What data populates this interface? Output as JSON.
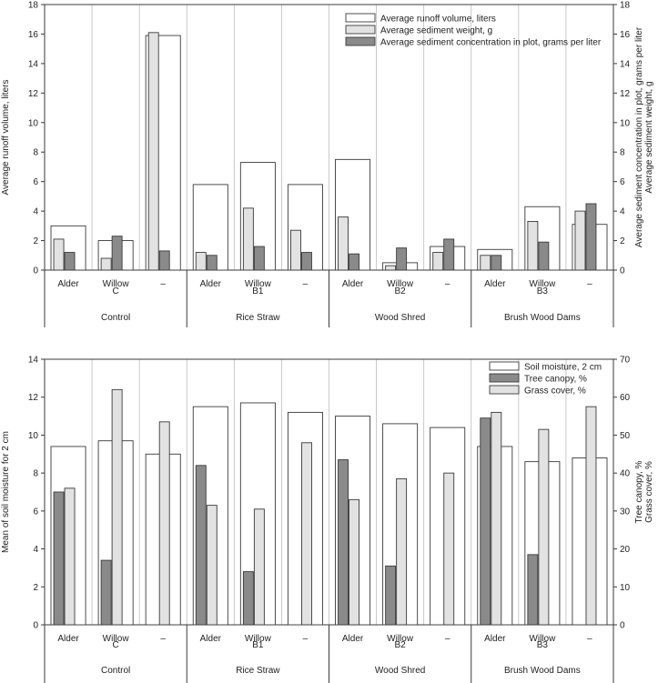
{
  "figure": {
    "colors": {
      "outline": "#3a3a3a",
      "light_fill": "#e2e2e2",
      "dark_fill": "#8a8a8a",
      "white_fill": "#ffffff"
    },
    "treatments": [
      {
        "code": "C",
        "name": "Control"
      },
      {
        "code": "B1",
        "name": "Rice Straw"
      },
      {
        "code": "B2",
        "name": "Wood Shred"
      },
      {
        "code": "B3",
        "name": "Brush Wood Dams"
      }
    ],
    "species": [
      "Alder",
      "Willow",
      "–"
    ]
  },
  "chart_data": [
    {
      "type": "bar",
      "ylabel": "Average runoff volume, liters",
      "y2label": [
        "Average sediment concentration in plot, grams per liter",
        "Average sediment weight, g"
      ],
      "ylim": [
        0,
        18
      ],
      "y2lim": [
        0,
        18
      ],
      "yticks": [
        0,
        2,
        4,
        6,
        8,
        10,
        12,
        14,
        16,
        18
      ],
      "y2ticks": [
        0,
        2,
        4,
        6,
        8,
        10,
        12,
        14,
        16,
        18
      ],
      "legend_position": "top-right",
      "grid": "vertical",
      "categories": [
        "Alder",
        "Willow",
        "–",
        "Alder",
        "Willow",
        "–",
        "Alder",
        "Willow",
        "–",
        "Alder",
        "Willow",
        "–"
      ],
      "series": [
        {
          "name": "Average runoff volume, liters",
          "style": "white",
          "axis": "left",
          "values": [
            3.0,
            2.0,
            15.9,
            5.8,
            7.3,
            5.8,
            7.5,
            0.5,
            1.6,
            1.4,
            4.3,
            3.1
          ]
        },
        {
          "name": "Average sediment weight, g",
          "style": "light",
          "axis": "right",
          "values": [
            2.1,
            0.8,
            16.1,
            1.2,
            4.2,
            2.7,
            3.6,
            0.3,
            1.2,
            1.0,
            3.3,
            4.0
          ]
        },
        {
          "name": "Average sediment concentration in plot, grams per liter",
          "style": "dark",
          "axis": "right",
          "values": [
            1.2,
            2.3,
            1.3,
            1.0,
            1.6,
            1.2,
            1.1,
            1.5,
            2.1,
            1.0,
            1.9,
            4.5
          ]
        }
      ]
    },
    {
      "type": "bar",
      "ylabel": "Mean of soil moisture for 2 cm",
      "y2label": [
        "Tree canopy, %",
        "Grass cover, %"
      ],
      "ylim": [
        0,
        14
      ],
      "y2lim": [
        0,
        70
      ],
      "yticks": [
        0,
        2,
        4,
        6,
        8,
        10,
        12,
        14
      ],
      "y2ticks": [
        0,
        10,
        20,
        30,
        40,
        50,
        60,
        70
      ],
      "legend_position": "top-right",
      "grid": "vertical",
      "categories": [
        "Alder",
        "Willow",
        "–",
        "Alder",
        "Willow",
        "–",
        "Alder",
        "Willow",
        "–",
        "Alder",
        "Willow",
        "–"
      ],
      "series": [
        {
          "name": "Soil moisture, 2 cm",
          "style": "white",
          "axis": "left",
          "values": [
            9.4,
            9.7,
            9.0,
            11.5,
            11.7,
            11.2,
            11.0,
            10.6,
            10.4,
            9.4,
            8.6,
            8.8
          ]
        },
        {
          "name": "Tree canopy, %",
          "style": "dark",
          "axis": "right",
          "values": [
            35,
            17,
            0,
            42,
            14,
            0,
            43.5,
            15.5,
            0,
            54.5,
            18.5,
            0
          ]
        },
        {
          "name": "Grass cover, %",
          "style": "light",
          "axis": "right",
          "values": [
            36,
            62,
            53.5,
            31.5,
            30.5,
            48,
            33,
            38.5,
            40,
            56,
            51.5,
            57.5
          ]
        }
      ]
    }
  ]
}
